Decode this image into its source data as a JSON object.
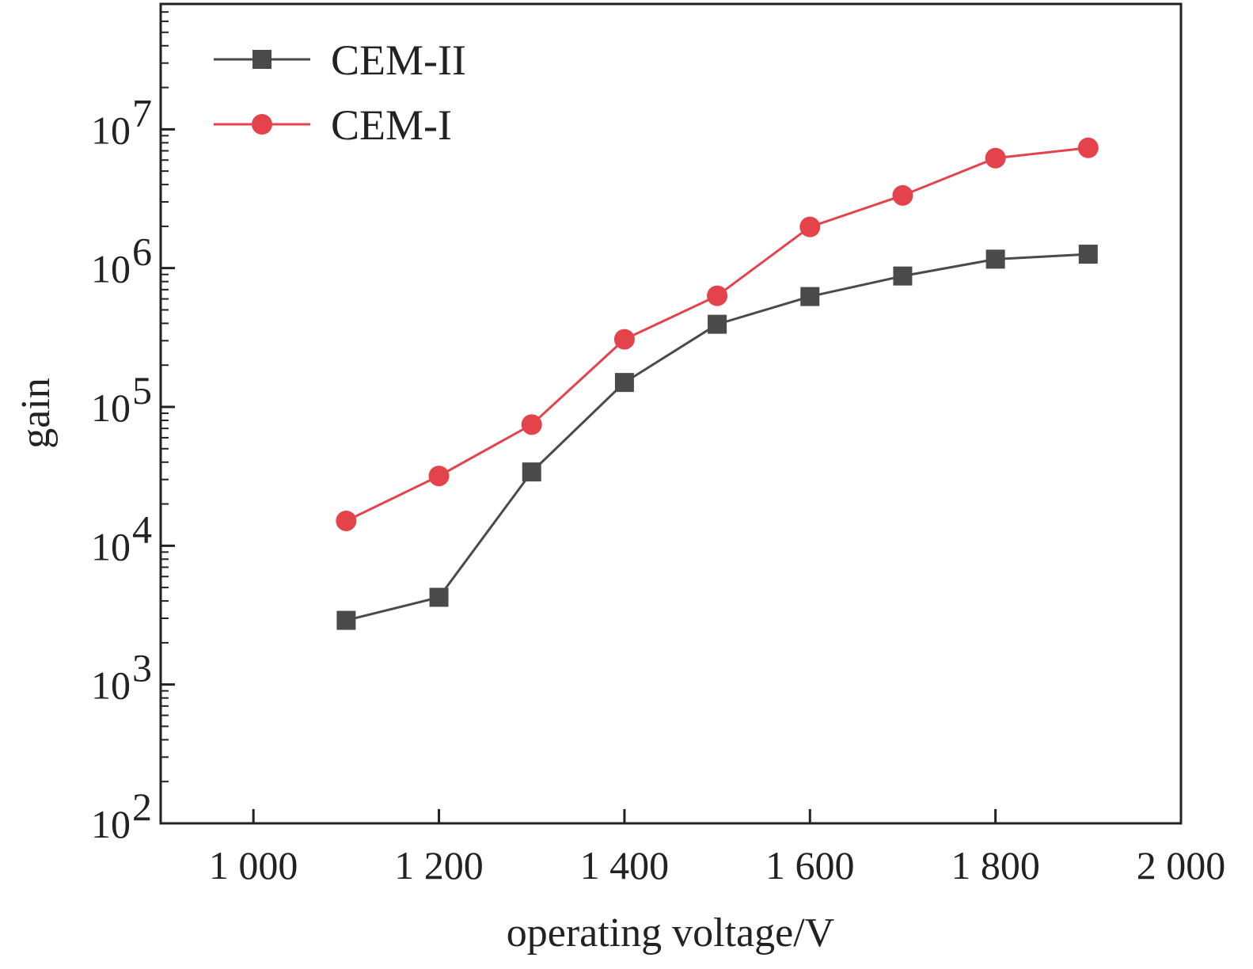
{
  "chart_data": {
    "type": "line",
    "title": "",
    "xlabel": "operating voltage/V",
    "ylabel": "gain",
    "xlim": [
      900,
      2000
    ],
    "ylim": [
      100,
      80000000
    ],
    "yscale": "log",
    "grid": false,
    "legend_position": "top-left",
    "x_ticks": [
      1000,
      1200,
      1400,
      1600,
      1800,
      2000
    ],
    "x_tick_labels": [
      "1 000",
      "1 200",
      "1 400",
      "1 600",
      "1 800",
      "2 000"
    ],
    "y_ticks": [
      100,
      1000,
      10000,
      100000,
      1000000,
      10000000
    ],
    "y_tick_labels": [
      {
        "base": "10",
        "exp": "2"
      },
      {
        "base": "10",
        "exp": "3"
      },
      {
        "base": "10",
        "exp": "4"
      },
      {
        "base": "10",
        "exp": "5"
      },
      {
        "base": "10",
        "exp": "6"
      },
      {
        "base": "10",
        "exp": "7"
      }
    ],
    "x": [
      1100,
      1200,
      1300,
      1400,
      1500,
      1600,
      1700,
      1800,
      1900
    ],
    "series": [
      {
        "name": "CEM-II",
        "color": "#4a4a4a",
        "marker": "square",
        "values": [
          2900,
          4250,
          34000,
          150000,
          394000,
          624000,
          877000,
          1160000,
          1260000
        ]
      },
      {
        "name": "CEM-I",
        "color": "#e5434b",
        "marker": "circle",
        "values": [
          15100,
          31800,
          74600,
          307000,
          632000,
          1980000,
          3340000,
          6200000,
          7350000
        ]
      }
    ]
  }
}
